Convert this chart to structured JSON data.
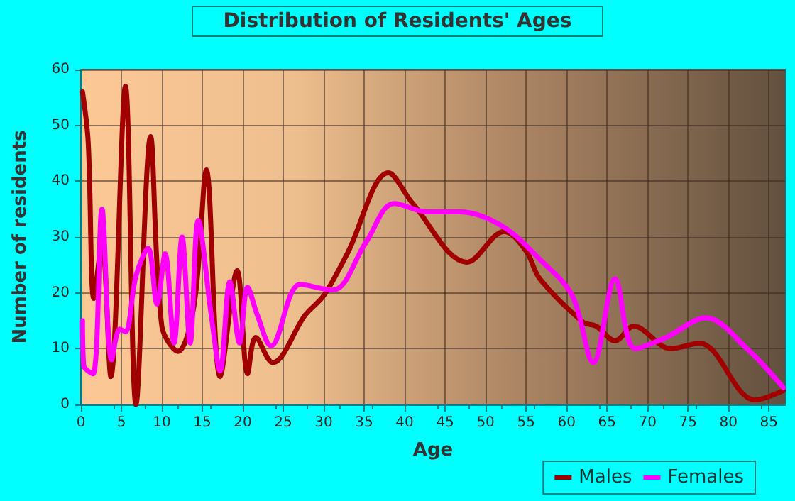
{
  "chart_data": {
    "type": "line",
    "title": "Distribution of Residents' Ages",
    "xlabel": "Age",
    "ylabel": "Number of residents",
    "xlim": [
      0,
      87
    ],
    "xticks": [
      0,
      5,
      10,
      15,
      20,
      25,
      30,
      35,
      40,
      45,
      50,
      55,
      60,
      65,
      70,
      75,
      80,
      85
    ],
    "ylim": [
      0,
      60
    ],
    "yticks": [
      0,
      10,
      20,
      30,
      40,
      50,
      60
    ],
    "grid": true,
    "legend": "bottom right",
    "marker": "none",
    "line_style": "solid",
    "series": [
      {
        "name": "Males",
        "color": "#a00000",
        "x": [
          0.2,
          0.9,
          1.6,
          2.6,
          3.7,
          5.5,
          6.8,
          8.6,
          10,
          12,
          14,
          15.5,
          17.2,
          19.3,
          20.6,
          21.6,
          23.7,
          27.7,
          30,
          32.9,
          38,
          41,
          47.7,
          52.3,
          55,
          56.7,
          62,
          63.7,
          66,
          68.3,
          72.9,
          76.4,
          83.3,
          86.8
        ],
        "values": [
          56,
          47,
          19,
          29,
          5,
          57,
          0,
          48,
          14,
          9.5,
          18,
          42,
          5,
          24,
          5.5,
          12,
          7.5,
          16,
          19.5,
          27,
          41.5,
          36,
          25.5,
          31,
          27.5,
          22.5,
          14.8,
          14,
          11.4,
          14,
          10,
          11,
          0.8,
          2.5
        ]
      },
      {
        "name": "Females",
        "color": "#ff00ff",
        "x": [
          0.2,
          0.35,
          1.5,
          2.6,
          3.8,
          4.8,
          5.5,
          6.8,
          8.3,
          9.4,
          10.4,
          11.5,
          12.5,
          13.5,
          14.5,
          16.1,
          17.2,
          18.4,
          19.6,
          20.6,
          21.8,
          23.5,
          27.1,
          31.1,
          35.2,
          38.7,
          42.8,
          46.8,
          52,
          56.7,
          60.7,
          63.3,
          66,
          68.5,
          72.3,
          77.2,
          82.3,
          86.8
        ],
        "values": [
          15,
          7,
          5.5,
          35,
          8,
          13.5,
          13,
          23,
          28,
          18,
          27,
          11,
          30,
          11,
          33,
          16,
          6,
          22,
          11,
          21,
          16,
          10.5,
          21.5,
          20.5,
          29,
          36,
          34.5,
          34.5,
          32,
          26,
          19.5,
          7.5,
          22.5,
          10,
          12,
          15.5,
          10,
          3
        ]
      }
    ]
  }
}
